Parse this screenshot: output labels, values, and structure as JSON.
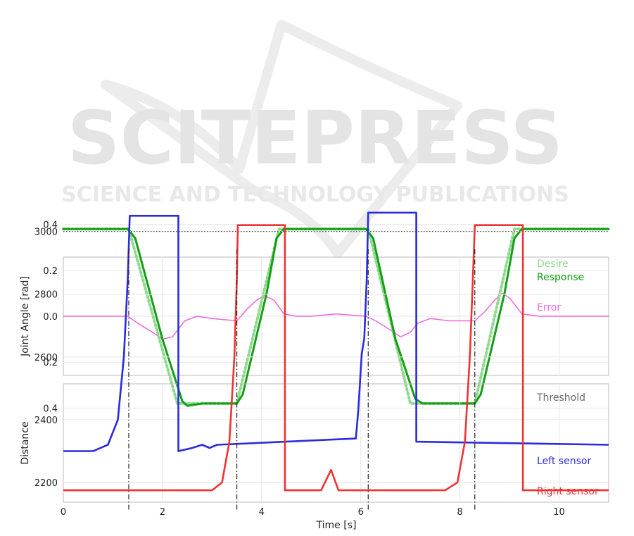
{
  "watermark": {
    "line1": "SCITEPRESS",
    "line2": "SCIENCE AND TECHNOLOGY PUBLICATIONS"
  },
  "colors": {
    "desire": "#8fd88f",
    "response": "#12a012",
    "error": "#ee66dd",
    "left_sensor": "#2b2bdd",
    "right_sensor": "#ee3333",
    "threshold": "#555555",
    "event_lines": "#222222"
  },
  "chart_data": [
    {
      "type": "line",
      "title": "",
      "xlabel": "",
      "ylabel": "Joint Angle [rad]",
      "xlim": [
        0,
        11
      ],
      "ylim": [
        -0.46,
        0.46
      ],
      "yticks": [
        0.4,
        0.2,
        0.0,
        -0.2,
        -0.4
      ],
      "ytick_labels": [
        "0.4",
        "0.2",
        "0.0",
        "0.2",
        "0.4"
      ],
      "grid": true,
      "legend": "right, labels at line ends",
      "event_lines_x": [
        1.32,
        3.5,
        6.15,
        8.3
      ],
      "series": [
        {
          "name": "Desire",
          "style": "dotted",
          "x": [
            0,
            1.32,
            2.3,
            3.5,
            4.35,
            6.15,
            7.0,
            8.3,
            9.1,
            11
          ],
          "y": [
            0.38,
            0.38,
            -0.38,
            -0.38,
            0.38,
            0.38,
            -0.38,
            -0.38,
            0.38,
            0.38
          ]
        },
        {
          "name": "Response",
          "style": "solid",
          "x": [
            0,
            1.3,
            1.45,
            2.0,
            2.4,
            2.5,
            2.8,
            3.5,
            3.62,
            4.1,
            4.3,
            4.45,
            6.1,
            6.25,
            6.7,
            7.1,
            7.25,
            7.5,
            8.3,
            8.42,
            8.9,
            9.1,
            9.25,
            11
          ],
          "y": [
            0.38,
            0.38,
            0.34,
            -0.1,
            -0.37,
            -0.39,
            -0.38,
            -0.38,
            -0.34,
            0.1,
            0.34,
            0.38,
            0.38,
            0.34,
            -0.1,
            -0.36,
            -0.38,
            -0.38,
            -0.38,
            -0.34,
            0.1,
            0.34,
            0.38,
            0.38
          ]
        },
        {
          "name": "Error",
          "style": "solid",
          "x": [
            0,
            1.3,
            1.5,
            1.8,
            2.0,
            2.2,
            2.45,
            2.7,
            3.0,
            3.5,
            3.7,
            3.9,
            4.05,
            4.25,
            4.45,
            4.7,
            5.0,
            5.5,
            6.1,
            6.3,
            6.6,
            6.8,
            7.0,
            7.15,
            7.4,
            7.8,
            8.3,
            8.5,
            8.7,
            8.85,
            9.0,
            9.25,
            9.6,
            11
          ],
          "y": [
            0.0,
            0.0,
            -0.03,
            -0.07,
            -0.1,
            -0.09,
            -0.02,
            0.0,
            -0.01,
            -0.02,
            0.03,
            0.07,
            0.09,
            0.07,
            0.01,
            0.0,
            0.0,
            0.01,
            0.0,
            -0.02,
            -0.06,
            -0.09,
            -0.07,
            -0.03,
            -0.01,
            -0.02,
            -0.02,
            0.02,
            0.07,
            0.1,
            0.08,
            0.01,
            0.0,
            0.0
          ]
        }
      ]
    },
    {
      "type": "line",
      "title": "",
      "xlabel": "Time [s]",
      "ylabel": "Distance",
      "xlim": [
        0,
        11
      ],
      "ylim": [
        2100,
        3190
      ],
      "xticks": [
        0,
        2,
        4,
        6,
        8,
        10
      ],
      "yticks": [
        2200,
        2400,
        2600,
        2800,
        3000
      ],
      "grid": true,
      "legend": "right, labels at line ends",
      "event_lines_x": [
        1.32,
        3.5,
        6.15,
        8.3
      ],
      "series": [
        {
          "name": "Threshold",
          "style": "dotted",
          "x": [
            0,
            11
          ],
          "y": [
            3000,
            3000
          ]
        },
        {
          "name": "Left sensor",
          "style": "solid",
          "x": [
            0,
            0.6,
            0.9,
            1.1,
            1.22,
            1.3,
            1.34,
            1.34,
            2.3,
            2.32,
            2.32,
            2.6,
            2.8,
            2.95,
            3.1,
            5.9,
            5.95,
            6.0,
            6.02,
            6.07,
            6.12,
            6.15,
            6.15,
            7.1,
            7.12,
            7.12,
            11
          ],
          "y": [
            2300,
            2300,
            2320,
            2400,
            2600,
            2850,
            3050,
            3050,
            3050,
            3050,
            2300,
            2310,
            2320,
            2310,
            2320,
            2340,
            2430,
            2560,
            2610,
            2660,
            2850,
            3060,
            3060,
            3060,
            3060,
            2330,
            2320
          ]
        },
        {
          "name": "Right sensor",
          "style": "solid",
          "x": [
            0,
            3.0,
            3.2,
            3.35,
            3.45,
            3.5,
            3.52,
            3.52,
            4.45,
            4.47,
            4.47,
            5.2,
            5.4,
            5.55,
            5.7,
            6.15,
            7.7,
            7.95,
            8.1,
            8.2,
            8.26,
            8.3,
            8.3,
            9.25,
            9.27,
            9.27,
            11
          ],
          "y": [
            2175,
            2175,
            2200,
            2330,
            2600,
            2850,
            3020,
            3020,
            3020,
            3020,
            2175,
            2175,
            2240,
            2175,
            2175,
            2175,
            2175,
            2200,
            2330,
            2600,
            2850,
            3020,
            3020,
            3020,
            3020,
            2175,
            2175
          ]
        }
      ]
    }
  ]
}
